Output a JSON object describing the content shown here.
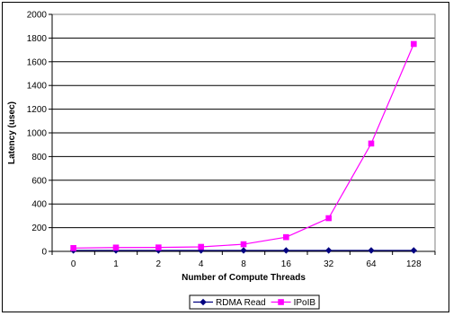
{
  "chart_data": {
    "type": "line",
    "title": "",
    "xlabel": "Number of Compute Threads",
    "ylabel": "Latency (usec)",
    "categories": [
      "0",
      "1",
      "2",
      "4",
      "8",
      "16",
      "32",
      "64",
      "128"
    ],
    "ylim": [
      0,
      2000
    ],
    "yticks": [
      0,
      200,
      400,
      600,
      800,
      1000,
      1200,
      1400,
      1600,
      1800,
      2000
    ],
    "grid": true,
    "legend_position": "bottom",
    "series": [
      {
        "name": "RDMA Read",
        "color": "#000080",
        "marker": "diamond",
        "values": [
          8,
          8,
          8,
          8,
          8,
          8,
          8,
          8,
          8
        ]
      },
      {
        "name": "IPoIB",
        "color": "#ff00ff",
        "marker": "square",
        "values": [
          28,
          32,
          33,
          38,
          60,
          120,
          280,
          910,
          1750
        ]
      }
    ]
  }
}
